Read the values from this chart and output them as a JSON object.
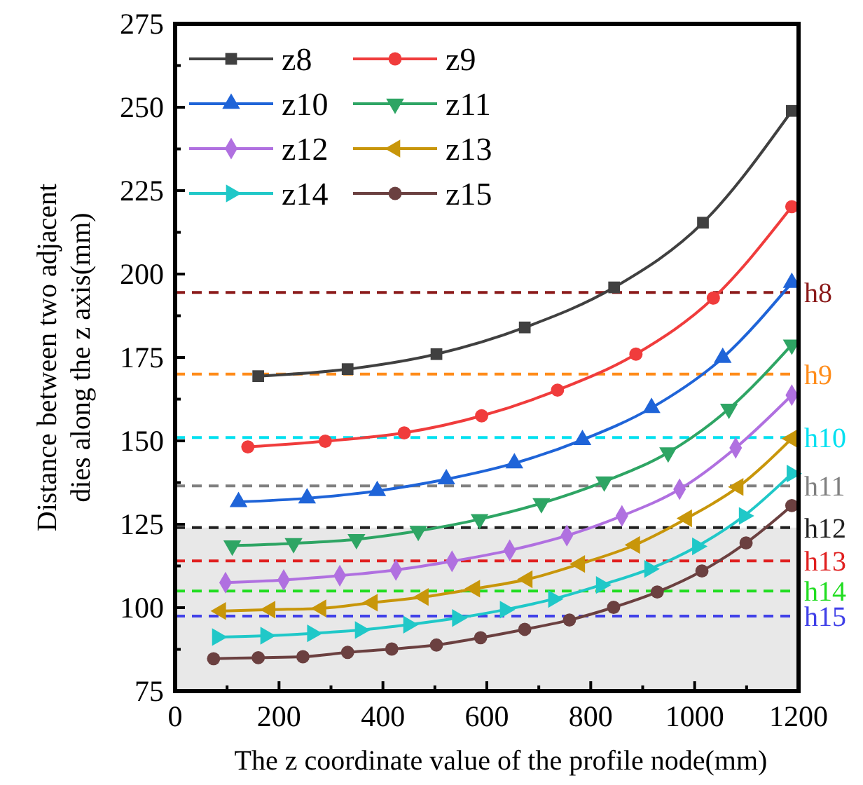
{
  "chart_data": {
    "type": "line",
    "xlabel": "The z coordinate value of the profile node(mm)",
    "ylabel": "Distance between two adjacent\ndies along the z axis(mm)",
    "xlim": [
      0,
      1200
    ],
    "ylim": [
      75,
      275
    ],
    "xticks": [
      0,
      {
        "value": 100,
        "label": null
      },
      200,
      {
        "value": 300,
        "label": null
      },
      400,
      {
        "value": 500,
        "label": null
      },
      600,
      {
        "value": 700,
        "label": null
      },
      800,
      {
        "value": 900,
        "label": null
      },
      1000,
      {
        "value": 1100,
        "label": null
      },
      1200
    ],
    "yticks": [
      75,
      {
        "value": 87.5,
        "label": null
      },
      100,
      {
        "value": 112.5,
        "label": null
      },
      125,
      {
        "value": 137.5,
        "label": null
      },
      150,
      {
        "value": 162.5,
        "label": null
      },
      175,
      {
        "value": 187.5,
        "label": null
      },
      200,
      {
        "value": 212.5,
        "label": null
      },
      225,
      {
        "value": 237.5,
        "label": null
      },
      250,
      {
        "value": 262.5,
        "label": null
      },
      275
    ],
    "grid": false,
    "legend": "top left",
    "line_style": "solid",
    "series": [
      {
        "name": "z8",
        "color": "#404040",
        "marker": "square",
        "x": [
          160,
          332,
          503,
          673,
          845,
          1016,
          1187
        ],
        "values": [
          169.4,
          171.5,
          176,
          184,
          196,
          215.4,
          248.9
        ]
      },
      {
        "name": "z9",
        "color": "#f03c3c",
        "marker": "circle",
        "x": [
          140,
          289,
          441,
          590,
          736,
          887,
          1036,
          1187
        ],
        "values": [
          148.2,
          149.9,
          152.4,
          157.5,
          165.2,
          176,
          192.8,
          220.2
        ]
      },
      {
        "name": "z10",
        "color": "#1f64d8",
        "marker": "triangle",
        "x": [
          122,
          254,
          389,
          522,
          653,
          784,
          917,
          1054,
          1187
        ],
        "values": [
          131.7,
          132.8,
          135,
          138.5,
          143.3,
          150.3,
          159.9,
          174.9,
          197.4
        ]
      },
      {
        "name": "z11",
        "color": "#2ea564",
        "marker": "triangle-down",
        "x": [
          110,
          228,
          349,
          468,
          586,
          705,
          826,
          949,
          1066,
          1187
        ],
        "values": [
          118.6,
          119.3,
          120.5,
          123,
          126.5,
          131.3,
          137.8,
          146.5,
          159.6,
          178.8
        ]
      },
      {
        "name": "z12",
        "color": "#b070e0",
        "marker": "diamond",
        "x": [
          97,
          209,
          317,
          425,
          533,
          644,
          754,
          860,
          971,
          1079,
          1187
        ],
        "values": [
          107.5,
          108.3,
          109.6,
          111.3,
          113.9,
          117.2,
          121.6,
          127.5,
          135.5,
          147.9,
          163.7
        ]
      },
      {
        "name": "z13",
        "color": "#c8960a",
        "marker": "triangle-left",
        "x": [
          88,
          183,
          281,
          380,
          478,
          577,
          678,
          779,
          885,
          985,
          1084,
          1187
        ],
        "values": [
          99,
          99.4,
          99.8,
          101.5,
          103.2,
          105.7,
          108.5,
          113.1,
          118.8,
          126.8,
          136.2,
          150.7
        ]
      },
      {
        "name": "z14",
        "color": "#20c8c8",
        "marker": "triangle-right",
        "x": [
          81,
          174,
          264,
          356,
          449,
          543,
          635,
          728,
          820,
          913,
          1005,
          1095,
          1187
        ],
        "values": [
          91.2,
          91.6,
          92.3,
          93.3,
          94.9,
          96.9,
          99.4,
          102.6,
          106.8,
          111.6,
          118.4,
          127.5,
          140.2
        ]
      },
      {
        "name": "z15",
        "color": "#6b4040",
        "marker": "circle",
        "x": [
          74,
          160,
          246,
          332,
          417,
          503,
          588,
          673,
          759,
          844,
          928,
          1014,
          1099,
          1187
        ],
        "values": [
          84.7,
          85,
          85.3,
          86.6,
          87.6,
          88.8,
          91,
          93.5,
          96.3,
          100.1,
          104.7,
          111,
          119.4,
          130.6
        ]
      }
    ],
    "bands": [
      {
        "axis": "y",
        "from": 75,
        "to": 124,
        "color": "#e8e8e8"
      }
    ],
    "ref_lines": [
      {
        "axis": "y",
        "value": 194.5,
        "label": "h8",
        "color": "#8b1a1a",
        "line_style": "dashed"
      },
      {
        "axis": "y",
        "value": 170,
        "label": "h9",
        "color": "#ff8c1a",
        "line_style": "dashed"
      },
      {
        "axis": "y",
        "value": 151,
        "label": "h10",
        "color": "#00e0f0",
        "line_style": "dashed"
      },
      {
        "axis": "y",
        "value": 136.5,
        "label": "h11",
        "color": "#808080",
        "line_style": "dashed"
      },
      {
        "axis": "y",
        "value": 124,
        "label": "h12",
        "color": "#202020",
        "line_style": "dashed"
      },
      {
        "axis": "y",
        "value": 114,
        "label": "h13",
        "color": "#e02020",
        "line_style": "dashed"
      },
      {
        "axis": "y",
        "value": 105,
        "label": "h14",
        "color": "#22dd22",
        "line_style": "dashed"
      },
      {
        "axis": "y",
        "value": 97.5,
        "label": "h15",
        "color": "#4040e8",
        "line_style": "dashed"
      }
    ]
  }
}
